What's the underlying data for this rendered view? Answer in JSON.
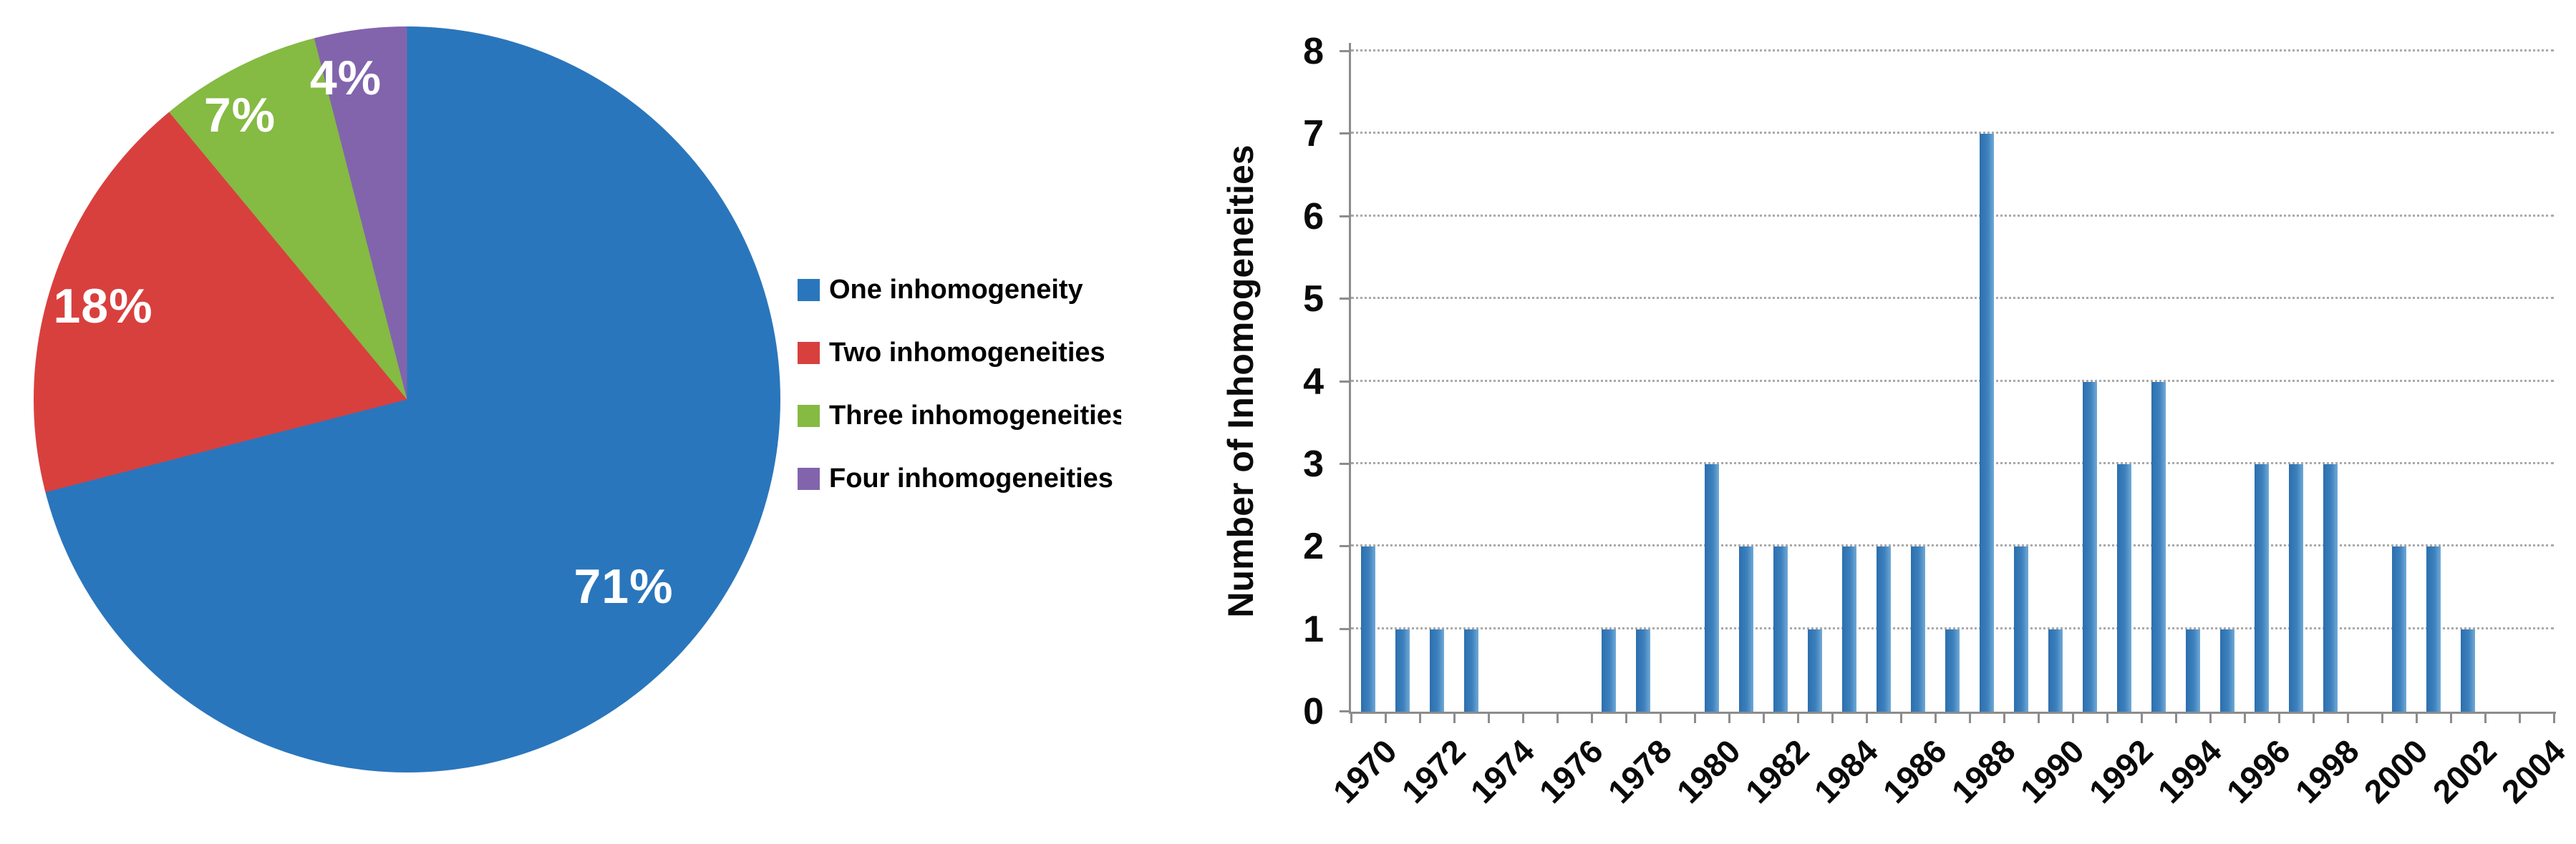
{
  "chart_data": [
    {
      "type": "pie",
      "title": "",
      "labels": [
        "One inhomogeneity",
        "Two inhomogeneities",
        "Three inhomogeneities",
        "Four inhomogeneities"
      ],
      "values": [
        71,
        18,
        7,
        4
      ],
      "data_labels": [
        "71%",
        "18%",
        "7%",
        "4%"
      ],
      "colors": [
        "#2a76bc",
        "#d8403e",
        "#85ba43",
        "#8264ad"
      ],
      "legend_position": "right",
      "start_angle_deg": 0,
      "direction": "clockwise"
    },
    {
      "type": "bar",
      "title": "",
      "xlabel": "",
      "ylabel": "Number of Inhomogeneities",
      "ylim": [
        0,
        8
      ],
      "yticks": [
        0,
        1,
        2,
        3,
        4,
        5,
        6,
        7,
        8
      ],
      "categories": [
        1970,
        1971,
        1972,
        1973,
        1974,
        1975,
        1976,
        1977,
        1978,
        1979,
        1980,
        1981,
        1982,
        1983,
        1984,
        1985,
        1986,
        1987,
        1988,
        1989,
        1990,
        1991,
        1992,
        1993,
        1994,
        1995,
        1996,
        1997,
        1998,
        1999,
        2000,
        2001,
        2002,
        2003,
        2004
      ],
      "values": [
        2,
        1,
        1,
        1,
        0,
        0,
        0,
        1,
        1,
        0,
        3,
        2,
        2,
        1,
        2,
        2,
        2,
        1,
        7,
        2,
        1,
        4,
        3,
        4,
        1,
        1,
        3,
        3,
        3,
        0,
        2,
        2,
        1,
        0,
        0
      ],
      "xtick_labels": [
        "1970",
        "1972",
        "1974",
        "1976",
        "1978",
        "1980",
        "1982",
        "1984",
        "1986",
        "1988",
        "1990",
        "1992",
        "1994",
        "1996",
        "1998",
        "2000",
        "2002",
        "2004"
      ],
      "xtick_label_step": 2,
      "bar_color": "#2e76b4",
      "grid": "horizontal-dotted",
      "legend": "none"
    }
  ]
}
